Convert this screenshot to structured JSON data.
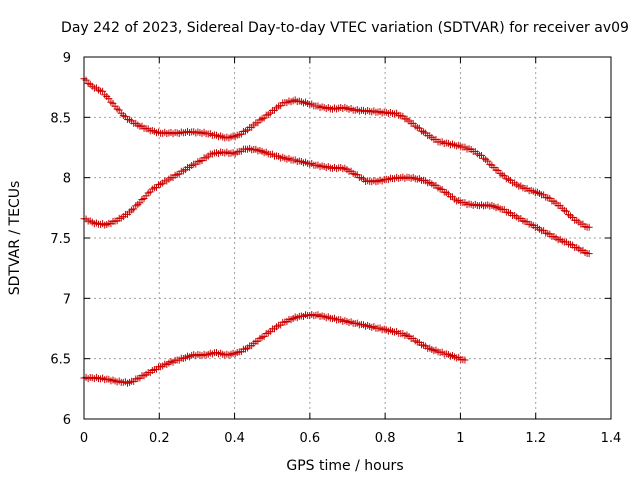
{
  "chart_data": {
    "type": "scatter",
    "title": "Day 242 of 2023, Sidereal Day-to-day VTEC variation (SDTVAR) for receiver av09",
    "xlabel": "GPS time / hours",
    "ylabel": "SDTVAR / TECUs",
    "xlim": [
      0,
      1.4
    ],
    "ylim": [
      6,
      9
    ],
    "x_ticks": [
      "0",
      "0.2",
      "0.4",
      "0.6",
      "0.8",
      "1",
      "1.2",
      "1.4"
    ],
    "y_ticks": [
      "6",
      "6.5",
      "7",
      "7.5",
      "8",
      "8.5",
      "9"
    ],
    "grid": true,
    "marker": "+",
    "color": "#cc0000",
    "series": [
      {
        "name": "upper",
        "anchors": [
          [
            0.0,
            8.82
          ],
          [
            0.02,
            8.76
          ],
          [
            0.05,
            8.71
          ],
          [
            0.08,
            8.6
          ],
          [
            0.11,
            8.5
          ],
          [
            0.14,
            8.44
          ],
          [
            0.17,
            8.4
          ],
          [
            0.2,
            8.37
          ],
          [
            0.25,
            8.37
          ],
          [
            0.28,
            8.38
          ],
          [
            0.32,
            8.37
          ],
          [
            0.35,
            8.35
          ],
          [
            0.38,
            8.33
          ],
          [
            0.41,
            8.35
          ],
          [
            0.44,
            8.41
          ],
          [
            0.47,
            8.48
          ],
          [
            0.5,
            8.55
          ],
          [
            0.53,
            8.62
          ],
          [
            0.56,
            8.64
          ],
          [
            0.59,
            8.62
          ],
          [
            0.62,
            8.59
          ],
          [
            0.66,
            8.57
          ],
          [
            0.69,
            8.58
          ],
          [
            0.72,
            8.56
          ],
          [
            0.76,
            8.55
          ],
          [
            0.8,
            8.54
          ],
          [
            0.83,
            8.53
          ],
          [
            0.85,
            8.5
          ],
          [
            0.88,
            8.43
          ],
          [
            0.91,
            8.36
          ],
          [
            0.94,
            8.3
          ],
          [
            0.97,
            8.28
          ],
          [
            1.0,
            8.26
          ],
          [
            1.03,
            8.23
          ],
          [
            1.06,
            8.17
          ],
          [
            1.09,
            8.08
          ],
          [
            1.12,
            8.0
          ],
          [
            1.15,
            7.94
          ],
          [
            1.18,
            7.9
          ],
          [
            1.21,
            7.87
          ],
          [
            1.24,
            7.82
          ],
          [
            1.27,
            7.75
          ],
          [
            1.3,
            7.66
          ],
          [
            1.33,
            7.6
          ],
          [
            1.345,
            7.58
          ]
        ]
      },
      {
        "name": "middle",
        "anchors": [
          [
            0.0,
            7.66
          ],
          [
            0.03,
            7.62
          ],
          [
            0.06,
            7.61
          ],
          [
            0.09,
            7.65
          ],
          [
            0.12,
            7.71
          ],
          [
            0.15,
            7.8
          ],
          [
            0.18,
            7.9
          ],
          [
            0.21,
            7.96
          ],
          [
            0.25,
            8.03
          ],
          [
            0.28,
            8.09
          ],
          [
            0.31,
            8.14
          ],
          [
            0.34,
            8.2
          ],
          [
            0.37,
            8.21
          ],
          [
            0.4,
            8.2
          ],
          [
            0.43,
            8.24
          ],
          [
            0.46,
            8.23
          ],
          [
            0.49,
            8.2
          ],
          [
            0.52,
            8.17
          ],
          [
            0.55,
            8.15
          ],
          [
            0.58,
            8.13
          ],
          [
            0.62,
            8.1
          ],
          [
            0.66,
            8.08
          ],
          [
            0.69,
            8.08
          ],
          [
            0.72,
            8.03
          ],
          [
            0.75,
            7.97
          ],
          [
            0.78,
            7.97
          ],
          [
            0.81,
            7.99
          ],
          [
            0.84,
            8.0
          ],
          [
            0.87,
            8.0
          ],
          [
            0.9,
            7.98
          ],
          [
            0.93,
            7.94
          ],
          [
            0.96,
            7.88
          ],
          [
            0.99,
            7.81
          ],
          [
            1.02,
            7.78
          ],
          [
            1.05,
            7.77
          ],
          [
            1.08,
            7.77
          ],
          [
            1.11,
            7.74
          ],
          [
            1.14,
            7.69
          ],
          [
            1.17,
            7.64
          ],
          [
            1.2,
            7.59
          ],
          [
            1.23,
            7.54
          ],
          [
            1.26,
            7.49
          ],
          [
            1.29,
            7.45
          ],
          [
            1.32,
            7.4
          ],
          [
            1.345,
            7.36
          ]
        ]
      },
      {
        "name": "lower",
        "anchors": [
          [
            0.0,
            6.34
          ],
          [
            0.03,
            6.34
          ],
          [
            0.06,
            6.33
          ],
          [
            0.09,
            6.31
          ],
          [
            0.12,
            6.3
          ],
          [
            0.14,
            6.33
          ],
          [
            0.17,
            6.38
          ],
          [
            0.2,
            6.43
          ],
          [
            0.23,
            6.47
          ],
          [
            0.26,
            6.5
          ],
          [
            0.29,
            6.53
          ],
          [
            0.32,
            6.53
          ],
          [
            0.35,
            6.55
          ],
          [
            0.38,
            6.53
          ],
          [
            0.41,
            6.55
          ],
          [
            0.44,
            6.6
          ],
          [
            0.47,
            6.67
          ],
          [
            0.5,
            6.74
          ],
          [
            0.53,
            6.8
          ],
          [
            0.56,
            6.84
          ],
          [
            0.59,
            6.86
          ],
          [
            0.62,
            6.86
          ],
          [
            0.65,
            6.84
          ],
          [
            0.68,
            6.82
          ],
          [
            0.71,
            6.8
          ],
          [
            0.74,
            6.78
          ],
          [
            0.77,
            6.76
          ],
          [
            0.8,
            6.74
          ],
          [
            0.83,
            6.72
          ],
          [
            0.86,
            6.69
          ],
          [
            0.89,
            6.63
          ],
          [
            0.92,
            6.58
          ],
          [
            0.95,
            6.55
          ],
          [
            0.98,
            6.52
          ],
          [
            1.0,
            6.5
          ],
          [
            1.015,
            6.48
          ]
        ]
      }
    ]
  }
}
